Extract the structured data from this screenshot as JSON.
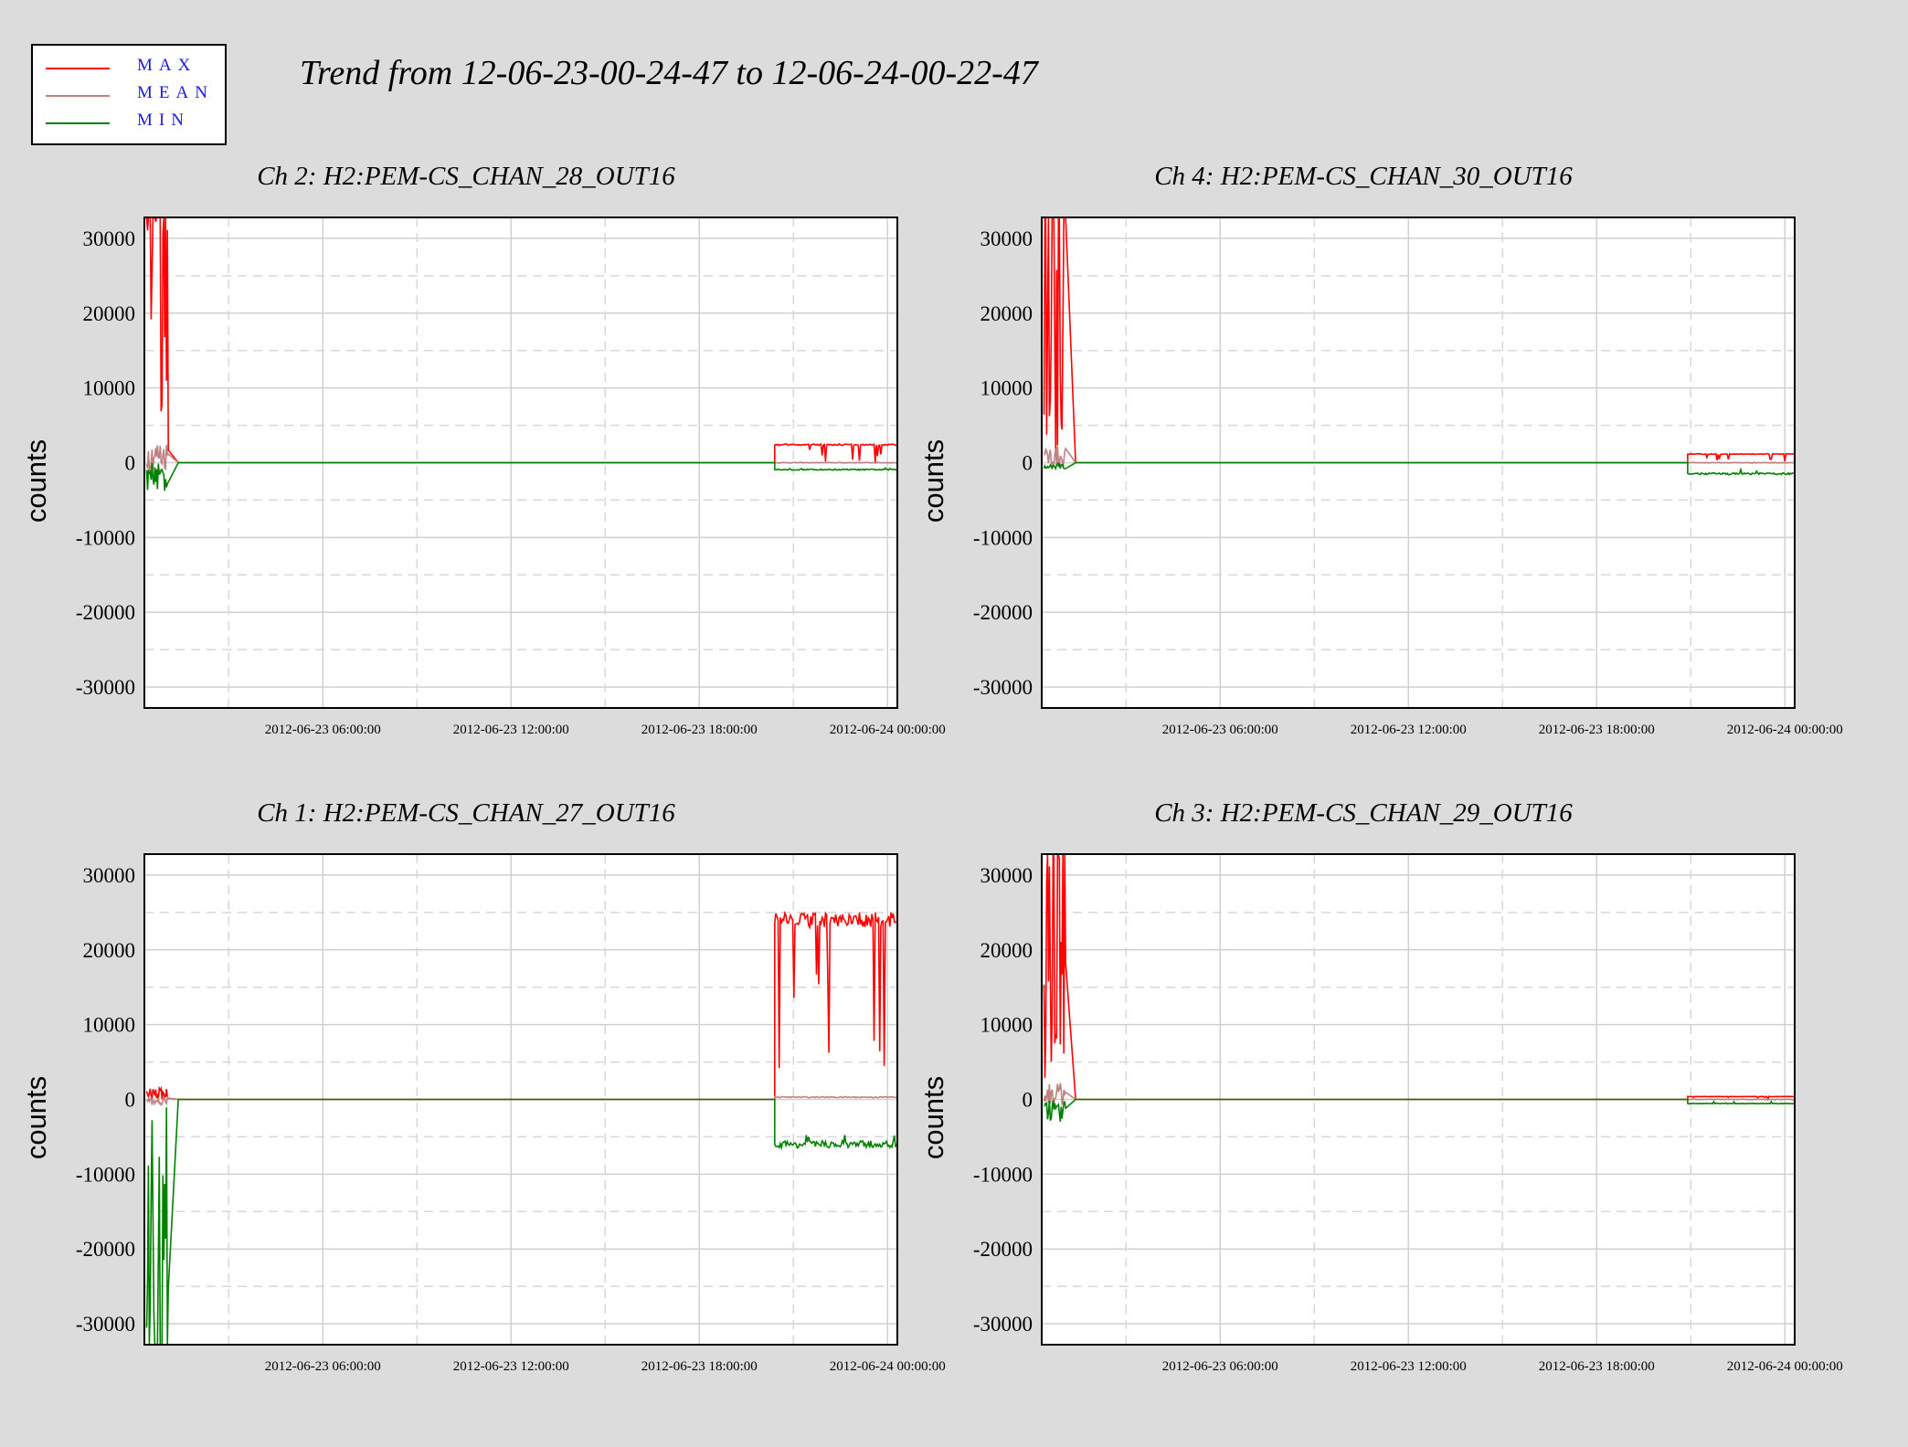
{
  "header": {
    "title": "Trend from 12-06-23-00-24-47 to 12-06-24-00-22-47"
  },
  "legend": {
    "items": [
      {
        "label": "MAX",
        "color": "#ff0000"
      },
      {
        "label": "MEAN",
        "color": "#c08080"
      },
      {
        "label": "MIN",
        "color": "#008000"
      }
    ]
  },
  "colors": {
    "background": "#dcdcdc",
    "plot_bg": "#ffffff",
    "max": "#ff0000",
    "mean": "#c08080",
    "min": "#008000"
  },
  "chart_data": [
    {
      "type": "line",
      "title": "Ch 2: H2:PEM-CS_CHAN_28_OUT16",
      "ylabel": "counts",
      "xlabel": "",
      "ylim": [
        -32800,
        32800
      ],
      "yticks": [
        30000,
        20000,
        10000,
        0,
        -10000,
        -20000,
        -30000
      ],
      "xticks": [
        "2012-06-23 06:00:00",
        "2012-06-23 12:00:00",
        "2012-06-23 18:00:00",
        "2012-06-24 00:00:00"
      ],
      "grid": true,
      "start_burst": {
        "max_peak": 32767,
        "min_low": -3800,
        "mean": 2000
      },
      "late_segment": {
        "start": "2012-06-23 20:30",
        "max": 2500,
        "mean": 0,
        "min": -1000
      }
    },
    {
      "type": "line",
      "title": "Ch 4: H2:PEM-CS_CHAN_30_OUT16",
      "ylabel": "counts",
      "xlabel": "",
      "ylim": [
        -32800,
        32800
      ],
      "yticks": [
        30000,
        20000,
        10000,
        0,
        -10000,
        -20000,
        -30000
      ],
      "xticks": [
        "2012-06-23 06:00:00",
        "2012-06-23 12:00:00",
        "2012-06-23 18:00:00",
        "2012-06-24 00:00:00"
      ],
      "grid": true,
      "start_burst": {
        "max_peak": 32767,
        "min_low": -800,
        "mean": 1500
      },
      "late_segment": {
        "start": "2012-06-23 21:00",
        "max": 1200,
        "mean": 0,
        "min": -1600
      }
    },
    {
      "type": "line",
      "title": "Ch 1: H2:PEM-CS_CHAN_27_OUT16",
      "ylabel": "counts",
      "xlabel": "",
      "ylim": [
        -32800,
        32800
      ],
      "yticks": [
        30000,
        20000,
        10000,
        0,
        -10000,
        -20000,
        -30000
      ],
      "xticks": [
        "2012-06-23 06:00:00",
        "2012-06-23 12:00:00",
        "2012-06-23 18:00:00",
        "2012-06-24 00:00:00"
      ],
      "grid": true,
      "start_burst": {
        "max_peak": 1500,
        "min_low": -32768,
        "mean": -500
      },
      "late_segment": {
        "start": "2012-06-23 20:30",
        "max": 25000,
        "mean": 300,
        "min": -6500
      }
    },
    {
      "type": "line",
      "title": "Ch 3: H2:PEM-CS_CHAN_29_OUT16",
      "ylabel": "counts",
      "xlabel": "",
      "ylim": [
        -32800,
        32800
      ],
      "yticks": [
        30000,
        20000,
        10000,
        0,
        -10000,
        -20000,
        -30000
      ],
      "xticks": [
        "2012-06-23 06:00:00",
        "2012-06-23 12:00:00",
        "2012-06-23 18:00:00",
        "2012-06-24 00:00:00"
      ],
      "grid": true,
      "start_burst": {
        "max_peak": 32767,
        "min_low": -3000,
        "mean": 1500
      },
      "late_segment": {
        "start": "2012-06-23 21:00",
        "max": 400,
        "mean": 0,
        "min": -600
      }
    }
  ]
}
